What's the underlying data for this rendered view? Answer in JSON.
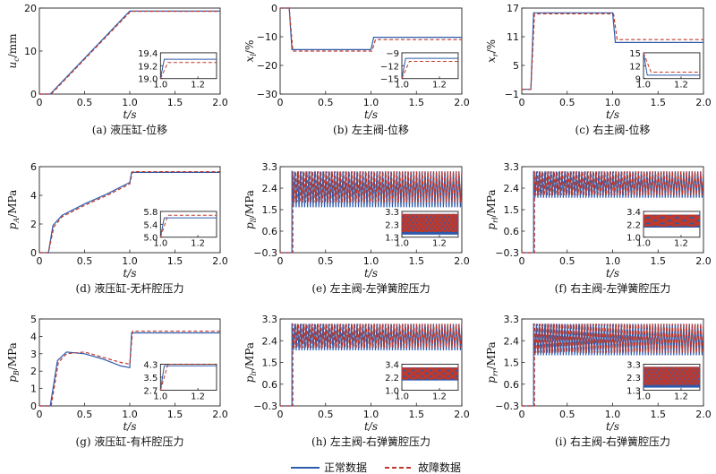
{
  "legend": {
    "normal": "正常数据",
    "fault": "故障数据",
    "normal_color": "#2E5AAC",
    "fault_color": "#C0392B"
  },
  "chart_data": [
    {
      "type": "line",
      "caption": "(a) 液压缸-位移",
      "ylabel": "u_c/mm",
      "ylabel_main": "u",
      "ylabel_sub": "c",
      "ylabel_unit": "/mm",
      "xlabel": "t/s",
      "xticks": [
        "0",
        "0.5",
        "1.0",
        "1.5",
        "2.0"
      ],
      "xlim": [
        0,
        2
      ],
      "yticks": [
        "0",
        "10",
        "20"
      ],
      "ylim": [
        0,
        20
      ],
      "series": [
        {
          "name": "正常数据",
          "pattern": "ramp",
          "x": [
            0,
            0.12,
            1.0,
            2.0
          ],
          "y": [
            0,
            0,
            19.3,
            19.3
          ]
        },
        {
          "name": "故障数据",
          "pattern": "ramp",
          "x": [
            0,
            0.13,
            1.01,
            2.0
          ],
          "y": [
            0,
            0,
            19.25,
            19.25
          ]
        }
      ],
      "inset": {
        "xticks": [
          "1.0",
          "1.2"
        ],
        "xlim": [
          1.0,
          1.3
        ],
        "yticks": [
          "19.0",
          "19.2",
          "19.4"
        ],
        "ylim": [
          19.0,
          19.4
        ],
        "series": [
          {
            "name": "正常数据",
            "x": [
              1.0,
              1.02,
              1.3
            ],
            "y": [
              19.0,
              19.3,
              19.3
            ]
          },
          {
            "name": "故障数据",
            "x": [
              1.0,
              1.04,
              1.3
            ],
            "y": [
              19.0,
              19.25,
              19.25
            ]
          }
        ]
      }
    },
    {
      "type": "line",
      "caption": "(b) 左主阀-位移",
      "ylabel": "x_l/%",
      "ylabel_main": "x",
      "ylabel_sub": "l",
      "ylabel_unit": "/%",
      "xlabel": "t/s",
      "xticks": [
        "0",
        "0.5",
        "1.0",
        "1.5",
        "2.0"
      ],
      "xlim": [
        0,
        2
      ],
      "yticks": [
        "−30",
        "−20",
        "−10",
        "0"
      ],
      "ylim": [
        -30,
        0
      ],
      "series": [
        {
          "name": "正常数据",
          "pattern": "step",
          "x": [
            0,
            0.1,
            0.13,
            1.0,
            1.03,
            2.0
          ],
          "y": [
            0,
            0,
            -14.5,
            -14.5,
            -10.2,
            -10.2
          ]
        },
        {
          "name": "故障数据",
          "pattern": "step",
          "x": [
            0,
            0.1,
            0.14,
            1.01,
            1.05,
            2.0
          ],
          "y": [
            0,
            0,
            -15.0,
            -15.0,
            -11.0,
            -11.0
          ]
        }
      ],
      "inset": {
        "xticks": [
          "1.0",
          "1.2"
        ],
        "xlim": [
          1.0,
          1.3
        ],
        "yticks": [
          "−15",
          "−12",
          "−9"
        ],
        "ylim": [
          -15,
          -9
        ],
        "series": [
          {
            "name": "正常数据",
            "x": [
              1.0,
              1.02,
              1.3
            ],
            "y": [
              -15.0,
              -10.3,
              -10.3
            ]
          },
          {
            "name": "故障数据",
            "x": [
              1.0,
              1.04,
              1.3
            ],
            "y": [
              -15.0,
              -11.0,
              -11.0
            ]
          }
        ]
      }
    },
    {
      "type": "line",
      "caption": "(c) 右主阀-位移",
      "ylabel": "x_r/%",
      "ylabel_main": "x",
      "ylabel_sub": "r",
      "ylabel_unit": "/%",
      "xlabel": "t/s",
      "xticks": [
        "0",
        "0.5",
        "1.0",
        "1.5",
        "2.0"
      ],
      "xlim": [
        0,
        2
      ],
      "yticks": [
        "−1",
        "5",
        "11",
        "17"
      ],
      "ylim": [
        -1,
        17
      ],
      "series": [
        {
          "name": "正常数据",
          "pattern": "step",
          "x": [
            0,
            0.1,
            0.13,
            1.0,
            1.03,
            2.0
          ],
          "y": [
            0,
            0,
            16.0,
            16.0,
            9.8,
            9.8
          ]
        },
        {
          "name": "故障数据",
          "pattern": "step",
          "x": [
            0,
            0.1,
            0.14,
            1.01,
            1.05,
            2.0
          ],
          "y": [
            0,
            0,
            15.8,
            15.8,
            10.4,
            10.4
          ]
        }
      ],
      "inset": {
        "xticks": [
          "1.0",
          "1.2"
        ],
        "xlim": [
          1.0,
          1.3
        ],
        "yticks": [
          "9",
          "12",
          "15"
        ],
        "ylim": [
          9,
          15
        ],
        "series": [
          {
            "name": "正常数据",
            "x": [
              1.0,
              1.02,
              1.3
            ],
            "y": [
              15.0,
              9.8,
              9.8
            ]
          },
          {
            "name": "故障数据",
            "x": [
              1.0,
              1.04,
              1.3
            ],
            "y": [
              15.0,
              10.5,
              10.5
            ]
          }
        ]
      }
    },
    {
      "type": "line",
      "caption": "(d) 液压缸-无杆腔压力",
      "ylabel": "p_A/MPa",
      "ylabel_main": "p",
      "ylabel_sub": "A",
      "ylabel_unit": "/MPa",
      "xlabel": "t/s",
      "xticks": [
        "0",
        "0.5",
        "1.0",
        "1.5",
        "2.0"
      ],
      "xlim": [
        0,
        2
      ],
      "yticks": [
        "0",
        "2",
        "4",
        "6"
      ],
      "ylim": [
        0,
        6
      ],
      "series": [
        {
          "name": "正常数据",
          "pattern": "rise",
          "x": [
            0,
            0.1,
            0.15,
            0.25,
            0.5,
            0.75,
            1.0,
            1.02,
            2.0
          ],
          "y": [
            0,
            0,
            1.9,
            2.6,
            3.4,
            4.1,
            4.9,
            5.6,
            5.6
          ]
        },
        {
          "name": "故障数据",
          "pattern": "rise",
          "x": [
            0,
            0.1,
            0.16,
            0.25,
            0.5,
            0.75,
            1.0,
            1.03,
            2.0
          ],
          "y": [
            0,
            0,
            1.8,
            2.5,
            3.3,
            4.0,
            4.8,
            5.65,
            5.65
          ]
        }
      ],
      "inset": {
        "xticks": [
          "1.0",
          "1.2"
        ],
        "xlim": [
          1.0,
          1.3
        ],
        "yticks": [
          "5.0",
          "5.4",
          "5.8"
        ],
        "ylim": [
          5.0,
          5.8
        ],
        "series": [
          {
            "name": "正常数据",
            "x": [
              1.0,
              1.02,
              1.3
            ],
            "y": [
              5.0,
              5.6,
              5.6
            ]
          },
          {
            "name": "故障数据",
            "x": [
              1.0,
              1.04,
              1.3
            ],
            "y": [
              5.0,
              5.68,
              5.68
            ]
          }
        ]
      }
    },
    {
      "type": "line",
      "caption": "(e) 左主阀-左弹簧腔压力",
      "ylabel": "p_ll/MPa",
      "ylabel_main": "p",
      "ylabel_sub": "ll",
      "ylabel_unit": "/MPa",
      "xlabel": "t/s",
      "xticks": [
        "0",
        "0.5",
        "1.0",
        "1.5",
        "2.0"
      ],
      "xlim": [
        0,
        2
      ],
      "yticks": [
        "−0.3",
        "0.6",
        "1.5",
        "2.4",
        "3.3"
      ],
      "ylim": [
        -0.3,
        3.3
      ],
      "series": [
        {
          "name": "正常数据",
          "pattern": "osc",
          "x": [
            0,
            0.13,
            2.0
          ],
          "y": [
            -0.3,
            1.6,
            3.1
          ]
        },
        {
          "name": "故障数据",
          "pattern": "osc",
          "x": [
            0,
            0.14,
            2.0
          ],
          "y": [
            -0.3,
            1.8,
            3.1
          ]
        }
      ],
      "inset": {
        "xticks": [
          "1.0",
          "1.2"
        ],
        "xlim": [
          1.0,
          1.3
        ],
        "yticks": [
          "1.3",
          "2.3",
          "3.3"
        ],
        "ylim": [
          1.3,
          3.3
        ],
        "series": [
          {
            "name": "正常数据",
            "pattern": "osc",
            "x": [
              1.0,
              1.3
            ],
            "y": [
              1.5,
              3.1
            ]
          },
          {
            "name": "故障数据",
            "pattern": "osc",
            "x": [
              1.0,
              1.3
            ],
            "y": [
              1.7,
              3.1
            ]
          }
        ]
      }
    },
    {
      "type": "line",
      "caption": "(f) 右主阀-左弹簧腔压力",
      "ylabel": "p_rl/MPa",
      "ylabel_main": "p",
      "ylabel_sub": "rl",
      "ylabel_unit": "/MPa",
      "xlabel": "t/s",
      "xticks": [
        "0",
        "0.5",
        "1.0",
        "1.5",
        "2.0"
      ],
      "xlim": [
        0,
        2
      ],
      "yticks": [
        "−0.3",
        "0.6",
        "1.5",
        "2.4",
        "3.3"
      ],
      "ylim": [
        -0.3,
        3.3
      ],
      "series": [
        {
          "name": "正常数据",
          "pattern": "osc",
          "x": [
            0,
            0.13,
            2.0
          ],
          "y": [
            -0.3,
            2.0,
            3.1
          ]
        },
        {
          "name": "故障数据",
          "pattern": "osc",
          "x": [
            0,
            0.14,
            2.0
          ],
          "y": [
            -0.3,
            2.1,
            3.1
          ]
        }
      ],
      "inset": {
        "xticks": [
          "1.0",
          "1.2"
        ],
        "xlim": [
          1.0,
          1.3
        ],
        "yticks": [
          "1.0",
          "2.2",
          "3.4"
        ],
        "ylim": [
          1.0,
          3.4
        ],
        "series": [
          {
            "name": "正常数据",
            "pattern": "osc",
            "x": [
              1.0,
              1.3
            ],
            "y": [
              1.9,
              3.1
            ]
          },
          {
            "name": "故障数据",
            "pattern": "osc",
            "x": [
              1.0,
              1.3
            ],
            "y": [
              2.0,
              3.1
            ]
          }
        ]
      }
    },
    {
      "type": "line",
      "caption": "(g) 液压缸-有杆腔压力",
      "ylabel": "p_B/MPa",
      "ylabel_main": "p",
      "ylabel_sub": "B",
      "ylabel_unit": "/MPa",
      "xlabel": "t/s",
      "xticks": [
        "0",
        "0.5",
        "1.0",
        "1.5",
        "2.0"
      ],
      "xlim": [
        0,
        2
      ],
      "yticks": [
        "0",
        "1",
        "2",
        "3",
        "4",
        "5"
      ],
      "ylim": [
        0,
        5
      ],
      "series": [
        {
          "name": "正常数据",
          "pattern": "rise",
          "x": [
            0,
            0.12,
            0.2,
            0.3,
            0.5,
            0.7,
            0.9,
            1.0,
            1.02,
            2.0
          ],
          "y": [
            0,
            0,
            2.6,
            3.1,
            3.0,
            2.7,
            2.3,
            2.2,
            4.2,
            4.2
          ]
        },
        {
          "name": "故障数据",
          "pattern": "rise",
          "x": [
            0,
            0.13,
            0.21,
            0.3,
            0.5,
            0.7,
            0.9,
            1.0,
            1.03,
            2.0
          ],
          "y": [
            0,
            0,
            2.5,
            3.0,
            3.1,
            2.8,
            2.5,
            2.4,
            4.3,
            4.3
          ]
        }
      ],
      "inset": {
        "xticks": [
          "1.0",
          "1.2"
        ],
        "xlim": [
          1.0,
          1.3
        ],
        "yticks": [
          "2.7",
          "3.5",
          "4.3"
        ],
        "ylim": [
          2.7,
          4.3
        ],
        "series": [
          {
            "name": "正常数据",
            "x": [
              1.0,
              1.02,
              1.3
            ],
            "y": [
              2.7,
              4.2,
              4.2
            ]
          },
          {
            "name": "故障数据",
            "x": [
              1.0,
              1.04,
              1.3
            ],
            "y": [
              2.7,
              4.3,
              4.3
            ]
          }
        ]
      }
    },
    {
      "type": "line",
      "caption": "(h) 左主阀-右弹簧腔压力",
      "ylabel": "p_lr/MPa",
      "ylabel_main": "p",
      "ylabel_sub": "lr",
      "ylabel_unit": "/MPa",
      "xlabel": "t/s",
      "xticks": [
        "0",
        "0.5",
        "1.0",
        "1.5",
        "2.0"
      ],
      "xlim": [
        0,
        2
      ],
      "yticks": [
        "−0.3",
        "0.6",
        "1.5",
        "2.4",
        "3.3"
      ],
      "ylim": [
        -0.3,
        3.3
      ],
      "series": [
        {
          "name": "正常数据",
          "pattern": "osc",
          "x": [
            0,
            0.13,
            2.0
          ],
          "y": [
            -0.3,
            2.0,
            3.1
          ]
        },
        {
          "name": "故障数据",
          "pattern": "osc",
          "x": [
            0,
            0.14,
            2.0
          ],
          "y": [
            -0.3,
            2.1,
            3.1
          ]
        }
      ],
      "inset": {
        "xticks": [
          "1.0",
          "1.2"
        ],
        "xlim": [
          1.0,
          1.3
        ],
        "yticks": [
          "1.0",
          "2.2",
          "3.4"
        ],
        "ylim": [
          1.0,
          3.4
        ],
        "series": [
          {
            "name": "正常数据",
            "pattern": "osc",
            "x": [
              1.0,
              1.3
            ],
            "y": [
              1.9,
              3.1
            ]
          },
          {
            "name": "故障数据",
            "pattern": "osc",
            "x": [
              1.0,
              1.3
            ],
            "y": [
              2.0,
              3.1
            ]
          }
        ]
      }
    },
    {
      "type": "line",
      "caption": "(i) 右主阀-右弹簧腔压力",
      "ylabel": "p_rr/MPa",
      "ylabel_main": "p",
      "ylabel_sub": "rr",
      "ylabel_unit": "/MPa",
      "xlabel": "t/s",
      "xticks": [
        "0",
        "0.5",
        "1.0",
        "1.5",
        "2.0"
      ],
      "xlim": [
        0,
        2
      ],
      "yticks": [
        "−0.3",
        "0.6",
        "1.5",
        "2.4",
        "3.3"
      ],
      "ylim": [
        -0.3,
        3.3
      ],
      "series": [
        {
          "name": "正常数据",
          "pattern": "osc",
          "x": [
            0,
            0.13,
            2.0
          ],
          "y": [
            -0.3,
            1.8,
            3.1
          ]
        },
        {
          "name": "故障数据",
          "pattern": "osc",
          "x": [
            0,
            0.14,
            2.0
          ],
          "y": [
            -0.3,
            1.9,
            3.1
          ]
        }
      ],
      "inset": {
        "xticks": [
          "1.0",
          "1.2"
        ],
        "xlim": [
          1.0,
          1.3
        ],
        "yticks": [
          "1.3",
          "2.3",
          "3.3"
        ],
        "ylim": [
          1.3,
          3.3
        ],
        "series": [
          {
            "name": "正常数据",
            "pattern": "osc",
            "x": [
              1.0,
              1.3
            ],
            "y": [
              1.5,
              3.1
            ]
          },
          {
            "name": "故障数据",
            "pattern": "osc",
            "x": [
              1.0,
              1.3
            ],
            "y": [
              1.7,
              3.1
            ]
          }
        ]
      }
    }
  ]
}
